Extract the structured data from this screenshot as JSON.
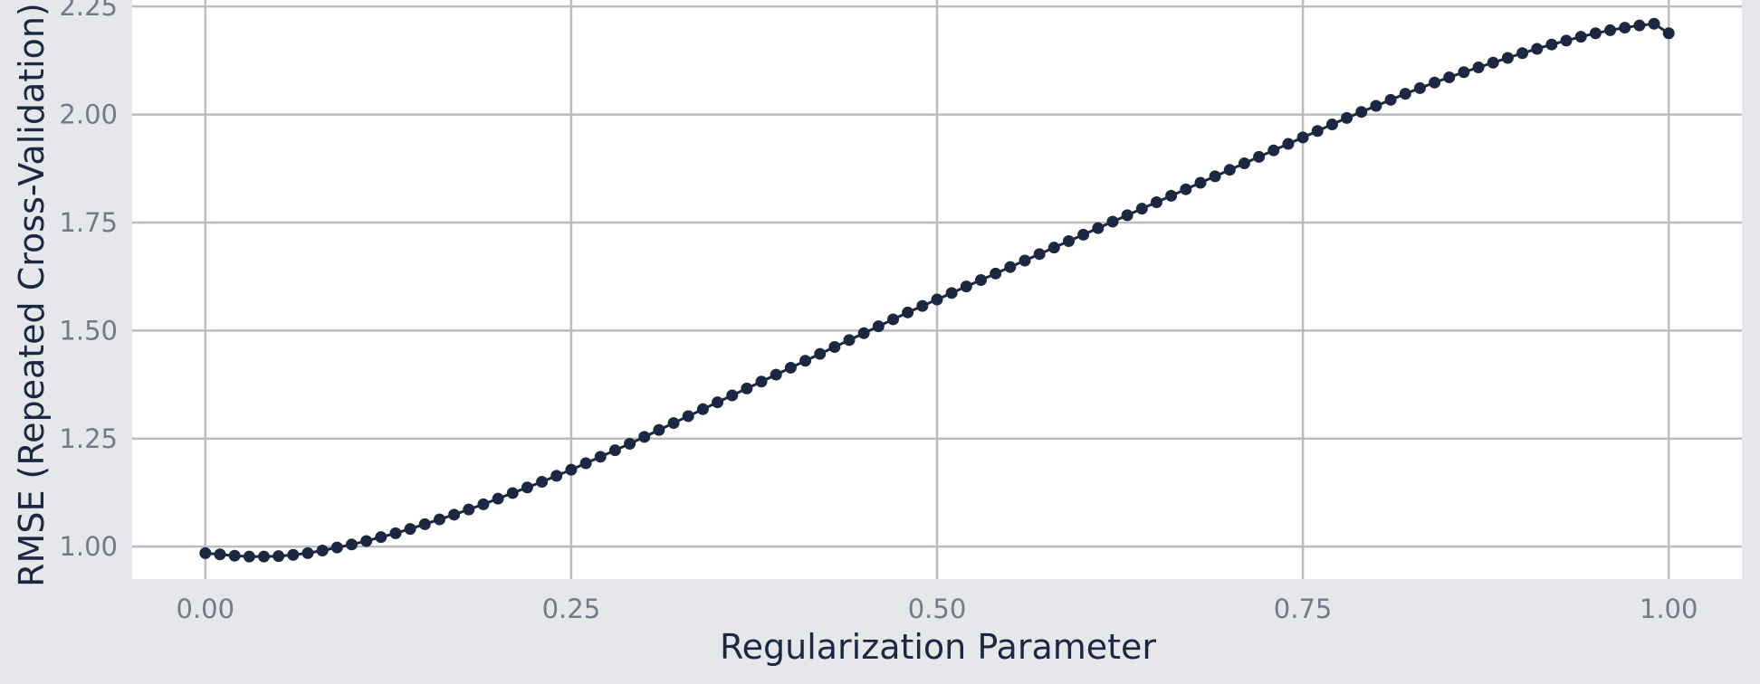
{
  "chart_data": {
    "type": "line",
    "title": "",
    "xlabel": "Regularization Parameter",
    "ylabel": "RMSE (Repeated Cross-Validation)",
    "xlim": [
      -0.05,
      1.05
    ],
    "ylim": [
      0.925,
      2.265
    ],
    "xticks": [
      0.0,
      0.25,
      0.5,
      0.75,
      1.0
    ],
    "xtick_labels": [
      "0.00",
      "0.25",
      "0.50",
      "0.75",
      "1.00"
    ],
    "yticks": [
      1.0,
      1.25,
      1.5,
      1.75,
      2.0,
      2.25
    ],
    "ytick_labels": [
      "1.00",
      "1.25",
      "1.50",
      "1.75",
      "2.00",
      "2.25"
    ],
    "grid": true,
    "markers": true,
    "colors": {
      "series": "#1c2841",
      "grid": "#b9bcc2",
      "panel": "#ffffff",
      "background": "#e5e7eb",
      "tick_text": "#737b8a",
      "title_text": "#1c2841"
    },
    "series": [
      {
        "x": [
          0.0,
          0.01,
          0.02,
          0.03,
          0.04,
          0.05,
          0.06,
          0.07,
          0.08,
          0.09,
          0.1,
          0.11,
          0.12,
          0.13,
          0.14,
          0.15,
          0.16,
          0.17,
          0.18,
          0.19,
          0.2,
          0.21,
          0.22,
          0.23,
          0.24,
          0.25,
          0.26,
          0.27,
          0.28,
          0.29,
          0.3,
          0.31,
          0.32,
          0.33,
          0.34,
          0.35,
          0.36,
          0.37,
          0.38,
          0.39,
          0.4,
          0.41,
          0.42,
          0.43,
          0.44,
          0.45,
          0.46,
          0.47,
          0.48,
          0.49,
          0.5,
          0.51,
          0.52,
          0.53,
          0.54,
          0.55,
          0.56,
          0.57,
          0.58,
          0.59,
          0.6,
          0.61,
          0.62,
          0.63,
          0.64,
          0.65,
          0.66,
          0.67,
          0.68,
          0.69,
          0.7,
          0.71,
          0.72,
          0.73,
          0.74,
          0.75,
          0.76,
          0.77,
          0.78,
          0.79,
          0.8,
          0.81,
          0.82,
          0.83,
          0.84,
          0.85,
          0.86,
          0.87,
          0.88,
          0.89,
          0.9,
          0.91,
          0.92,
          0.93,
          0.94,
          0.95,
          0.96,
          0.97,
          0.98,
          0.99,
          1.0
        ],
        "y": [
          0.985,
          0.982,
          0.979,
          0.977,
          0.977,
          0.978,
          0.981,
          0.985,
          0.991,
          0.998,
          1.005,
          1.013,
          1.022,
          1.031,
          1.041,
          1.052,
          1.063,
          1.074,
          1.086,
          1.098,
          1.111,
          1.124,
          1.137,
          1.15,
          1.164,
          1.178,
          1.193,
          1.208,
          1.223,
          1.238,
          1.254,
          1.27,
          1.286,
          1.302,
          1.318,
          1.334,
          1.35,
          1.366,
          1.382,
          1.398,
          1.414,
          1.43,
          1.446,
          1.462,
          1.478,
          1.494,
          1.51,
          1.526,
          1.542,
          1.557,
          1.572,
          1.587,
          1.602,
          1.617,
          1.632,
          1.647,
          1.662,
          1.677,
          1.692,
          1.707,
          1.722,
          1.737,
          1.752,
          1.767,
          1.782,
          1.797,
          1.812,
          1.827,
          1.842,
          1.857,
          1.872,
          1.887,
          1.902,
          1.917,
          1.932,
          1.947,
          1.962,
          1.977,
          1.992,
          2.006,
          2.02,
          2.034,
          2.048,
          2.061,
          2.074,
          2.086,
          2.098,
          2.109,
          2.12,
          2.131,
          2.142,
          2.152,
          2.162,
          2.171,
          2.18,
          2.188,
          2.195,
          2.201,
          2.206,
          2.21,
          2.188
        ]
      }
    ]
  }
}
